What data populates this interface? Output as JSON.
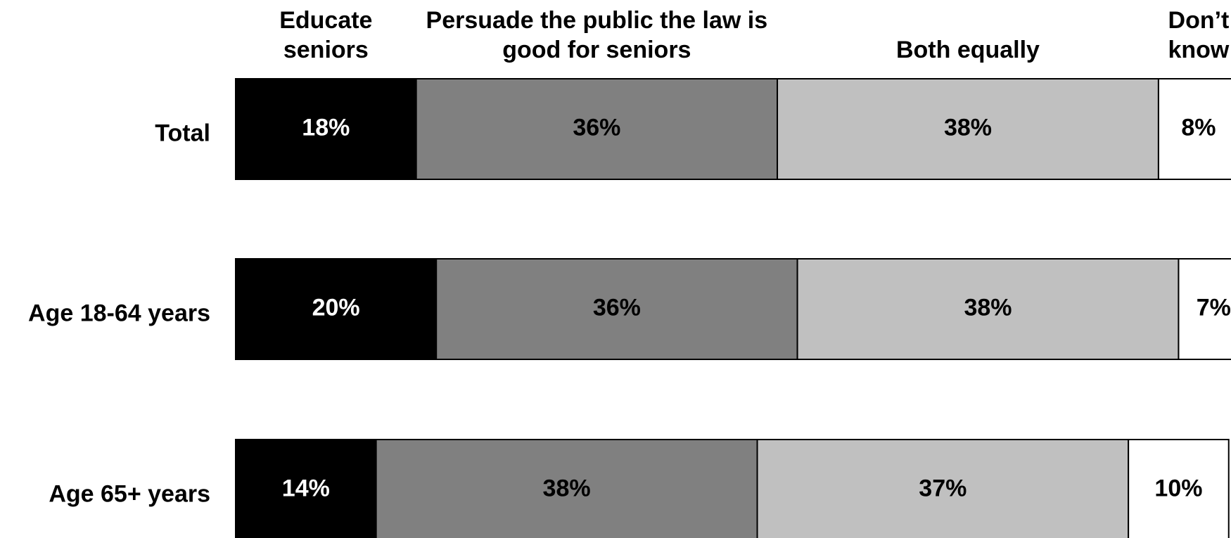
{
  "chart_data": {
    "type": "stacked-bar-horizontal",
    "categories": [
      "Total",
      "Age 18-64 years",
      "Age 65+ years"
    ],
    "series": [
      {
        "name": "Educate seniors",
        "color": "#000000",
        "values": [
          18,
          20,
          14
        ],
        "value_labels": [
          "18%",
          "20%",
          "14%"
        ]
      },
      {
        "name": "Persuade the public the law is good for seniors",
        "color": "#808080",
        "values": [
          36,
          36,
          38
        ],
        "value_labels": [
          "36%",
          "36%",
          "38%"
        ]
      },
      {
        "name": "Both equally",
        "color": "#c0c0c0",
        "values": [
          38,
          38,
          37
        ],
        "value_labels": [
          "38%",
          "38%",
          "37%"
        ]
      },
      {
        "name": "Don’t know",
        "color": "#ffffff",
        "values": [
          8,
          7,
          10
        ],
        "value_labels": [
          "8%",
          "7%",
          "10%"
        ]
      }
    ],
    "xlim": [
      0,
      100
    ]
  }
}
